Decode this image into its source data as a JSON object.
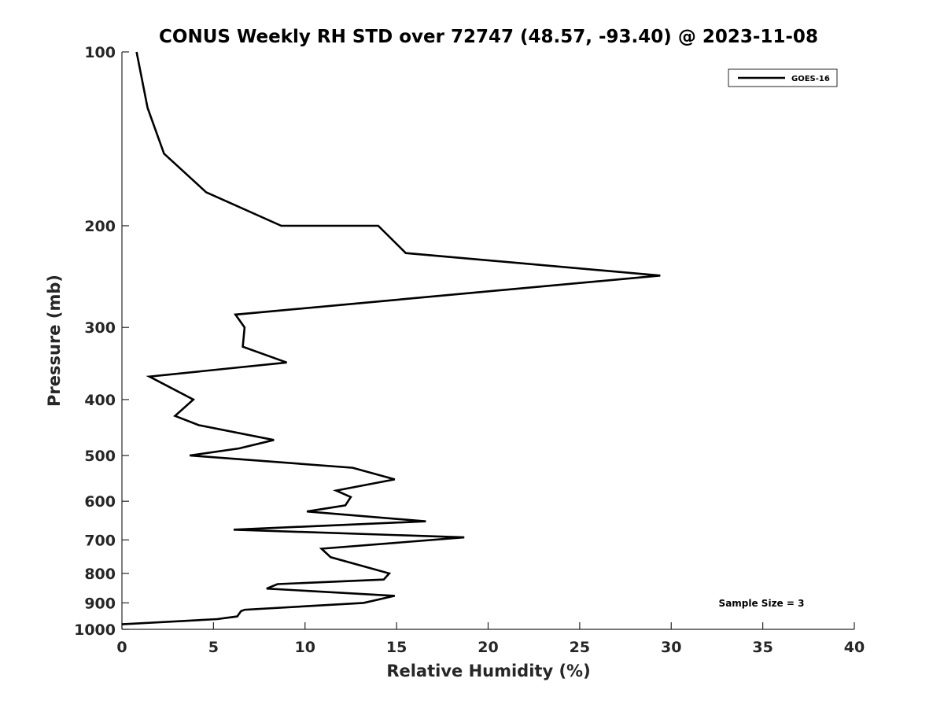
{
  "chart_data": {
    "type": "line",
    "title": "CONUS Weekly RH STD over 72747 (48.57, -93.40) @ 2023-11-08",
    "xlabel": "Relative Humidity (%)",
    "ylabel": "Pressure (mb)",
    "xlim": [
      0,
      40
    ],
    "ylim": [
      100,
      1000
    ],
    "y_scale": "log",
    "y_reversed": true,
    "x_ticks": [
      0,
      5,
      10,
      15,
      20,
      25,
      30,
      35,
      40
    ],
    "x_tick_labels": [
      "0",
      "5",
      "10",
      "15",
      "20",
      "25",
      "30",
      "35",
      "40"
    ],
    "y_ticks": [
      100,
      200,
      300,
      400,
      500,
      600,
      700,
      800,
      900,
      1000
    ],
    "y_tick_labels": [
      "100",
      "200",
      "300",
      "400",
      "500",
      "600",
      "700",
      "800",
      "900",
      "1000"
    ],
    "grid": false,
    "legend_position": "top-right",
    "annotation": "Sample Size = 3",
    "series": [
      {
        "name": "GOES-16",
        "color": "#000000",
        "points": [
          [
            0.8,
            100
          ],
          [
            1.4,
            125
          ],
          [
            2.3,
            150
          ],
          [
            4.6,
            175
          ],
          [
            8.7,
            200
          ],
          [
            14.0,
            200
          ],
          [
            15.5,
            223
          ],
          [
            29.4,
            244
          ],
          [
            6.2,
            285
          ],
          [
            6.7,
            300
          ],
          [
            6.6,
            324
          ],
          [
            9.0,
            345
          ],
          [
            1.5,
            365
          ],
          [
            3.9,
            400
          ],
          [
            2.9,
            427
          ],
          [
            4.2,
            443
          ],
          [
            8.3,
            470
          ],
          [
            6.4,
            486
          ],
          [
            3.7,
            500
          ],
          [
            12.6,
            525
          ],
          [
            14.9,
            550
          ],
          [
            11.7,
            575
          ],
          [
            12.5,
            590
          ],
          [
            12.2,
            610
          ],
          [
            10.1,
            625
          ],
          [
            16.6,
            650
          ],
          [
            6.1,
            672
          ],
          [
            18.7,
            693
          ],
          [
            10.9,
            725
          ],
          [
            11.4,
            750
          ],
          [
            14.6,
            800
          ],
          [
            14.3,
            820
          ],
          [
            8.5,
            835
          ],
          [
            7.9,
            850
          ],
          [
            14.9,
            875
          ],
          [
            13.2,
            900
          ],
          [
            6.7,
            925
          ],
          [
            6.5,
            930
          ],
          [
            6.3,
            950
          ],
          [
            5.2,
            960
          ],
          [
            0.0,
            980
          ]
        ]
      }
    ]
  }
}
